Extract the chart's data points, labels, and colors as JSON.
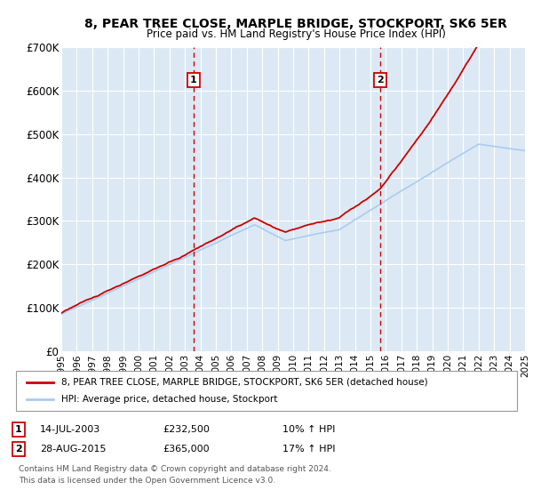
{
  "title": "8, PEAR TREE CLOSE, MARPLE BRIDGE, STOCKPORT, SK6 5ER",
  "subtitle": "Price paid vs. HM Land Registry's House Price Index (HPI)",
  "ylim": [
    0,
    700000
  ],
  "yticks": [
    0,
    100000,
    200000,
    300000,
    400000,
    500000,
    600000,
    700000
  ],
  "ytick_labels": [
    "£0",
    "£100K",
    "£200K",
    "£300K",
    "£400K",
    "£500K",
    "£600K",
    "£700K"
  ],
  "fig_bg_color": "#ffffff",
  "plot_bg_color": "#dce9f5",
  "grid_color": "#ffffff",
  "line1_color": "#cc0000",
  "line2_color": "#aaccee",
  "vline_color": "#cc0000",
  "marker1_x": 2003.54,
  "marker2_x": 2015.66,
  "sale1_date": "14-JUL-2003",
  "sale1_price": "£232,500",
  "sale1_hpi": "10% ↑ HPI",
  "sale2_date": "28-AUG-2015",
  "sale2_price": "£365,000",
  "sale2_hpi": "17% ↑ HPI",
  "legend1_label": "8, PEAR TREE CLOSE, MARPLE BRIDGE, STOCKPORT, SK6 5ER (detached house)",
  "legend2_label": "HPI: Average price, detached house, Stockport",
  "footnote": "Contains HM Land Registry data © Crown copyright and database right 2024.\nThis data is licensed under the Open Government Licence v3.0.",
  "xmin": 1995,
  "xmax": 2025,
  "xticks": [
    1995,
    1996,
    1997,
    1998,
    1999,
    2000,
    2001,
    2002,
    2003,
    2004,
    2005,
    2006,
    2007,
    2008,
    2009,
    2010,
    2011,
    2012,
    2013,
    2014,
    2015,
    2016,
    2017,
    2018,
    2019,
    2020,
    2021,
    2022,
    2023,
    2024,
    2025
  ]
}
